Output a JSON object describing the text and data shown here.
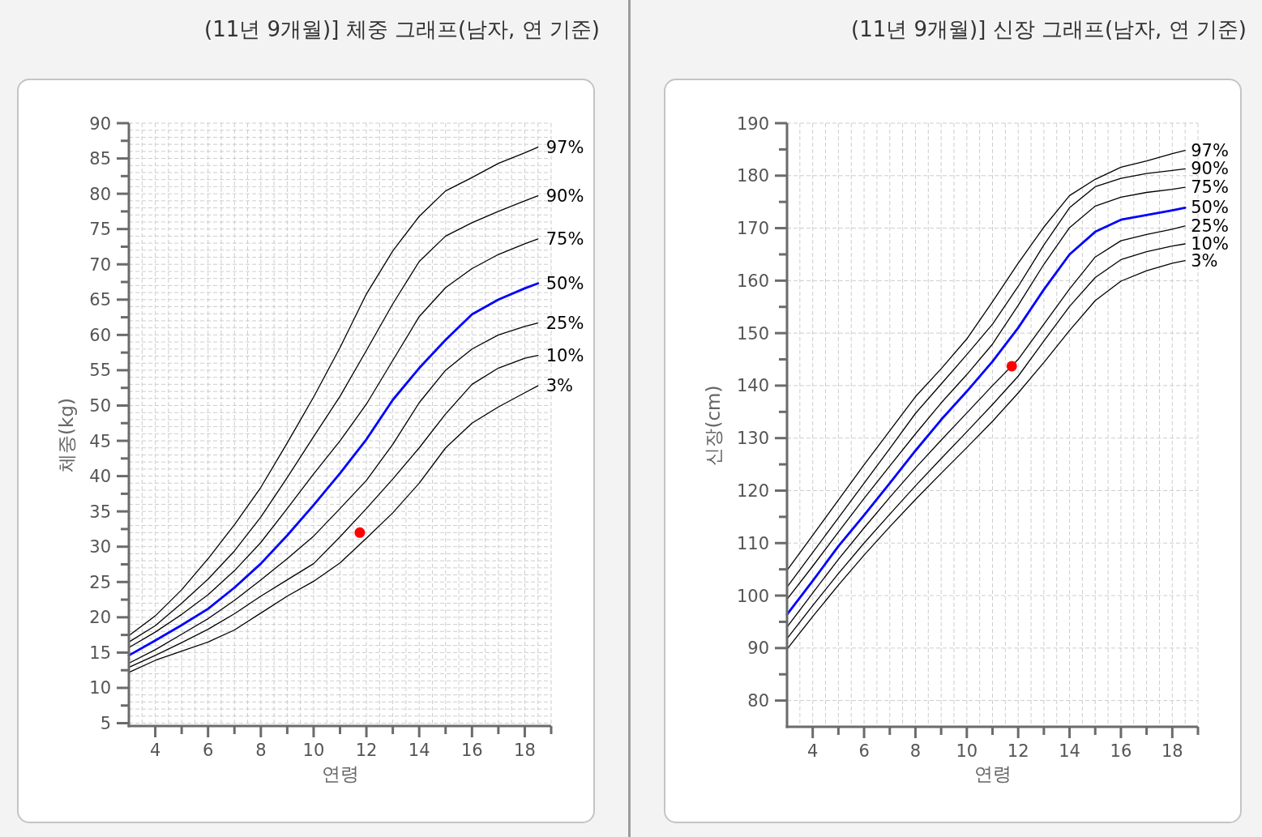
{
  "chart_data": [
    {
      "type": "line",
      "title": "(11년 9개월)] 체중 그래프(남자, 연 기준)",
      "xlabel": "연령",
      "ylabel": "체중(kg)",
      "x": [
        3,
        4,
        5,
        6,
        7,
        8,
        9,
        10,
        11,
        12,
        13,
        14,
        15,
        16,
        17,
        18,
        18.5
      ],
      "xlim": [
        3,
        19
      ],
      "ylim": [
        4.6,
        90
      ],
      "xticks": [
        4,
        {
          "value": 5,
          "label": null
        },
        6,
        {
          "value": 7,
          "label": null
        },
        8,
        {
          "value": 9,
          "label": null
        },
        10,
        {
          "value": 11,
          "label": null
        },
        12,
        {
          "value": 13,
          "label": null
        },
        14,
        {
          "value": 15,
          "label": null
        },
        16,
        {
          "value": 17,
          "label": null
        },
        18,
        {
          "value": 19,
          "label": null
        }
      ],
      "yticks": [
        5,
        {
          "value": 7.5,
          "label": null
        },
        10,
        {
          "value": 12.5,
          "label": null
        },
        15,
        {
          "value": 17.5,
          "label": null
        },
        20,
        {
          "value": 22.5,
          "label": null
        },
        25,
        {
          "value": 27.5,
          "label": null
        },
        30,
        {
          "value": 32.5,
          "label": null
        },
        35,
        {
          "value": 37.5,
          "label": null
        },
        40,
        {
          "value": 42.5,
          "label": null
        },
        45,
        {
          "value": 47.5,
          "label": null
        },
        50,
        {
          "value": 52.5,
          "label": null
        },
        55,
        {
          "value": 57.5,
          "label": null
        },
        60,
        {
          "value": 62.5,
          "label": null
        },
        65,
        {
          "value": 67.5,
          "label": null
        },
        70,
        {
          "value": 72.5,
          "label": null
        },
        75,
        {
          "value": 77.5,
          "label": null
        },
        80,
        {
          "value": 82.5,
          "label": null
        },
        85,
        {
          "value": 87.5,
          "label": null
        },
        90
      ],
      "grid": true,
      "series": [
        {
          "name": "97%",
          "color": "#000000",
          "values": [
            17.4,
            20.2,
            23.9,
            28.3,
            33.1,
            38.4,
            44.7,
            51.2,
            58.2,
            65.8,
            71.9,
            76.8,
            80.4,
            82.3,
            84.3,
            85.8,
            86.6
          ]
        },
        {
          "name": "90%",
          "color": "#000000",
          "values": [
            16.5,
            18.8,
            22.0,
            25.4,
            29.4,
            34.2,
            39.8,
            45.6,
            51.3,
            57.8,
            64.4,
            70.4,
            74.0,
            75.9,
            77.5,
            79.0,
            79.7
          ]
        },
        {
          "name": "75%",
          "color": "#000000",
          "values": [
            15.7,
            17.9,
            20.4,
            23.2,
            26.6,
            30.6,
            35.4,
            40.3,
            45.0,
            50.2,
            56.4,
            62.6,
            66.7,
            69.4,
            71.4,
            72.9,
            73.6
          ]
        },
        {
          "name": "50%",
          "color": "#0000ff",
          "values": [
            14.6,
            16.7,
            18.9,
            21.2,
            24.2,
            27.6,
            31.6,
            35.9,
            40.4,
            45.2,
            50.8,
            55.3,
            59.3,
            62.9,
            65.0,
            66.6,
            67.3
          ]
        },
        {
          "name": "25%",
          "color": "#000000",
          "values": [
            13.5,
            15.4,
            17.6,
            19.8,
            22.4,
            25.3,
            28.3,
            31.5,
            35.4,
            39.4,
            44.5,
            50.4,
            55.0,
            58.0,
            60.0,
            61.2,
            61.7
          ]
        },
        {
          "name": "10%",
          "color": "#000000",
          "values": [
            12.9,
            14.6,
            16.4,
            18.3,
            20.5,
            23.0,
            25.3,
            27.6,
            31.4,
            35.4,
            39.6,
            44.0,
            48.8,
            53.0,
            55.3,
            56.7,
            57.1
          ]
        },
        {
          "name": "3%",
          "color": "#000000",
          "values": [
            12.2,
            13.9,
            15.2,
            16.5,
            18.2,
            20.6,
            23.0,
            25.1,
            27.7,
            31.2,
            34.8,
            39.0,
            44.0,
            47.5,
            49.8,
            51.8,
            52.8
          ]
        },
        {
          "type": "scatter",
          "marker": "circle",
          "color": "#ff0000",
          "x": [
            11.75
          ],
          "values": [
            32
          ]
        }
      ]
    },
    {
      "type": "line",
      "title": "(11년 9개월)] 신장 그래프(남자, 연 기준)",
      "xlabel": "연령",
      "ylabel": "신장(cm)",
      "x": [
        3,
        4,
        5,
        6,
        7,
        8,
        9,
        10,
        11,
        12,
        13,
        14,
        15,
        16,
        17,
        18,
        18.5
      ],
      "xlim": [
        3,
        19
      ],
      "ylim": [
        75,
        190
      ],
      "xticks": [
        4,
        {
          "value": 5,
          "label": null
        },
        6,
        {
          "value": 7,
          "label": null
        },
        8,
        {
          "value": 9,
          "label": null
        },
        10,
        {
          "value": 11,
          "label": null
        },
        12,
        {
          "value": 13,
          "label": null
        },
        14,
        {
          "value": 15,
          "label": null
        },
        16,
        {
          "value": 17,
          "label": null
        },
        18,
        {
          "value": 19,
          "label": null
        }
      ],
      "yticks": [
        80,
        {
          "value": 85,
          "label": null
        },
        90,
        {
          "value": 95,
          "label": null
        },
        100,
        {
          "value": 105,
          "label": null
        },
        110,
        {
          "value": 115,
          "label": null
        },
        120,
        {
          "value": 125,
          "label": null
        },
        130,
        {
          "value": 135,
          "label": null
        },
        140,
        {
          "value": 145,
          "label": null
        },
        150,
        {
          "value": 155,
          "label": null
        },
        160,
        {
          "value": 165,
          "label": null
        },
        170,
        {
          "value": 175,
          "label": null
        },
        180,
        {
          "value": 185,
          "label": null
        },
        190
      ],
      "grid": true,
      "series": [
        {
          "name": "97%",
          "color": "#000000",
          "values": [
            104.8,
            111.5,
            118.2,
            124.9,
            131.4,
            137.9,
            143.2,
            148.9,
            156.0,
            163.3,
            170.2,
            176.2,
            179.3,
            181.6,
            182.8,
            184.2,
            184.8
          ]
        },
        {
          "name": "90%",
          "color": "#000000",
          "values": [
            101.6,
            108.2,
            114.8,
            121.4,
            128.0,
            134.7,
            140.3,
            145.9,
            151.7,
            158.9,
            166.8,
            173.9,
            177.9,
            179.5,
            180.4,
            181.0,
            181.3
          ]
        },
        {
          "name": "75%",
          "color": "#000000",
          "values": [
            99.3,
            105.6,
            112.1,
            118.5,
            124.7,
            130.8,
            136.7,
            142.1,
            147.9,
            155.3,
            163.1,
            170.1,
            174.2,
            175.9,
            176.8,
            177.4,
            177.8
          ]
        },
        {
          "name": "50%",
          "color": "#0000ff",
          "values": [
            96.4,
            102.8,
            109.4,
            115.3,
            121.4,
            127.6,
            133.5,
            138.9,
            144.6,
            151.0,
            158.3,
            165.0,
            169.3,
            171.6,
            172.5,
            173.4,
            173.9
          ]
        },
        {
          "name": "25%",
          "color": "#000000",
          "values": [
            94.0,
            100.5,
            106.9,
            112.9,
            118.7,
            124.3,
            129.6,
            134.8,
            140.0,
            145.0,
            151.7,
            158.4,
            164.5,
            167.6,
            168.8,
            169.8,
            170.4
          ]
        },
        {
          "name": "10%",
          "color": "#000000",
          "values": [
            91.8,
            98.1,
            104.2,
            110.0,
            115.5,
            120.9,
            126.1,
            131.2,
            136.4,
            141.8,
            148.5,
            155.1,
            160.6,
            164.0,
            165.5,
            166.6,
            167.0
          ]
        },
        {
          "name": "3%",
          "color": "#000000",
          "values": [
            89.8,
            96.0,
            102.0,
            107.7,
            113.1,
            118.3,
            123.3,
            128.2,
            133.2,
            138.6,
            144.4,
            150.5,
            156.2,
            159.9,
            161.9,
            163.3,
            163.8
          ]
        },
        {
          "type": "scatter",
          "marker": "circle",
          "color": "#ff0000",
          "x": [
            11.75
          ],
          "values": [
            143.7
          ]
        }
      ]
    }
  ]
}
